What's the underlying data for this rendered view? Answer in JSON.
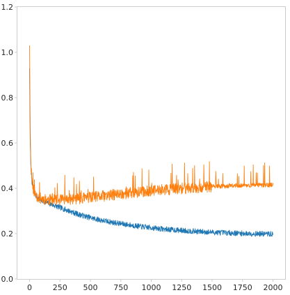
{
  "chart_data": {
    "type": "line",
    "title": "",
    "xlabel": "",
    "ylabel": "",
    "xlim": [
      -100,
      2100
    ],
    "ylim": [
      0.0,
      1.2
    ],
    "x_ticks": [
      0,
      250,
      500,
      750,
      1000,
      1250,
      1500,
      1750,
      2000
    ],
    "x_tick_labels": [
      "0",
      "250",
      "500",
      "750",
      "1000",
      "1250",
      "1500",
      "1750",
      "2000"
    ],
    "y_ticks": [
      0.0,
      0.2,
      0.4,
      0.6,
      0.8,
      1.0,
      1.2
    ],
    "y_tick_labels": [
      "0.0",
      "0.2",
      "0.4",
      "0.6",
      "0.8",
      "1.0",
      "1.2"
    ],
    "grid": false,
    "legend": "none",
    "series": [
      {
        "color": "#1f77b4",
        "x": [
          0,
          5,
          10,
          20,
          30,
          50,
          75,
          100,
          150,
          200,
          250,
          300,
          400,
          500,
          600,
          700,
          800,
          900,
          1000,
          1100,
          1200,
          1300,
          1400,
          1500,
          1600,
          1700,
          1800,
          1900,
          2000
        ],
        "y": [
          0.93,
          0.62,
          0.5,
          0.43,
          0.4,
          0.37,
          0.355,
          0.345,
          0.335,
          0.325,
          0.315,
          0.305,
          0.285,
          0.27,
          0.258,
          0.248,
          0.24,
          0.232,
          0.226,
          0.22,
          0.216,
          0.212,
          0.209,
          0.206,
          0.204,
          0.202,
          0.2,
          0.199,
          0.198
        ]
      },
      {
        "color": "#ff7f0e",
        "x": [
          0,
          5,
          10,
          20,
          30,
          50,
          75,
          100,
          150,
          200,
          250,
          300,
          400,
          500,
          600,
          700,
          800,
          900,
          1000,
          1100,
          1200,
          1300,
          1400,
          1500,
          1600,
          1700,
          1800,
          1900,
          2000
        ],
        "y": [
          1.03,
          0.7,
          0.52,
          0.44,
          0.4,
          0.37,
          0.36,
          0.355,
          0.35,
          0.348,
          0.348,
          0.35,
          0.355,
          0.36,
          0.365,
          0.372,
          0.378,
          0.383,
          0.388,
          0.393,
          0.397,
          0.401,
          0.404,
          0.407,
          0.41,
          0.412,
          0.413,
          0.414,
          0.415
        ]
      }
    ]
  }
}
